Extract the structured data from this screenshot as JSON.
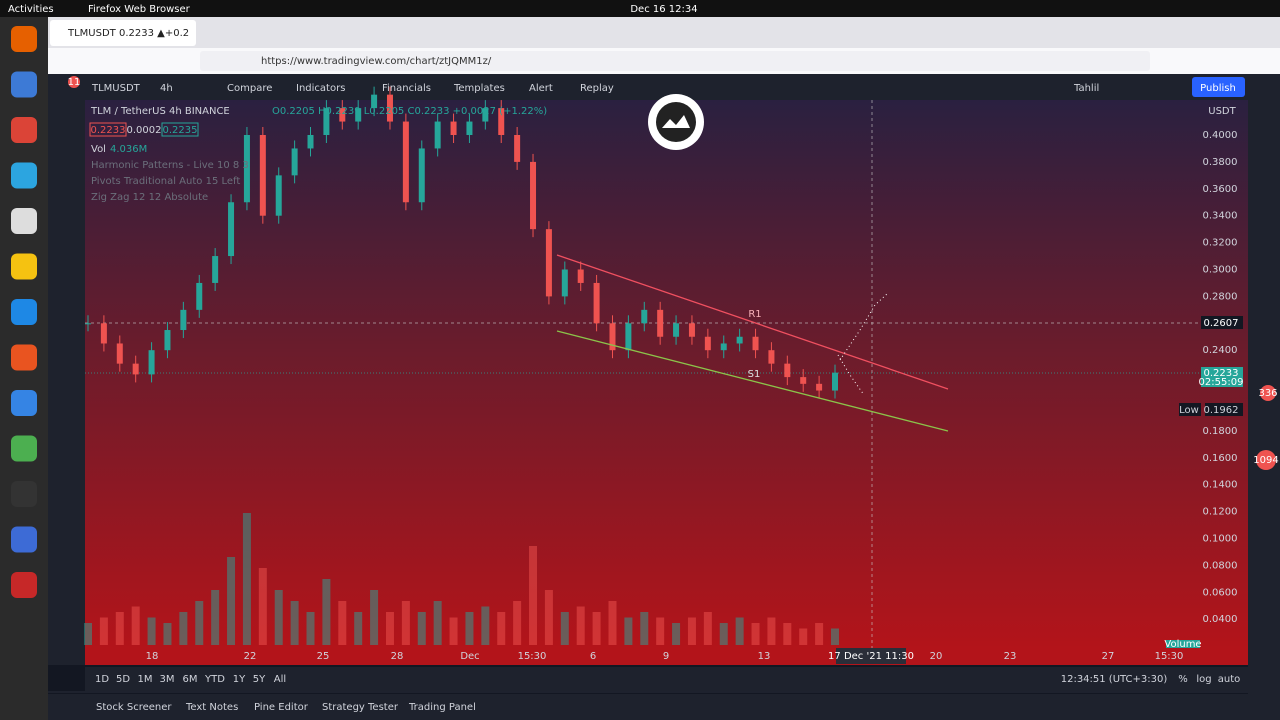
{
  "system_bar": {
    "activities": "Activities",
    "app": "Firefox Web Browser",
    "clock": "Dec 16  12:34"
  },
  "browser": {
    "tab_title": "TLMUSDT 0.2233 ▲+0.2",
    "url": "https://www.tradingview.com/chart/ztJQMM1z/",
    "tab_badge": "11"
  },
  "toolbar": {
    "symbol": "TLMUSDT",
    "interval": "4h",
    "buttons": [
      "Compare",
      "Indicators",
      "Financials",
      "Templates",
      "Alert",
      "Replay"
    ],
    "layout": "Tahlil",
    "publish": "Publish"
  },
  "legend": {
    "title": "TLM / TetherUS  4h  BINANCE",
    "ohlc": "O0.2205 H0.2239 L0.2205 C0.2233 +0.0027 (+1.22%)",
    "bid": "0.2233",
    "spread": "0.0002",
    "ask": "0.2235",
    "vol_label": "Vol",
    "vol": "4.036M",
    "indicators": [
      "Harmonic Patterns - Live 10 8 3",
      "Pivots Traditional Auto 15 Left",
      "Zig Zag 12 12 Absolute"
    ]
  },
  "drawings": {
    "resistance": "R1",
    "support": "S1"
  },
  "price_axis": {
    "currency": "USDT",
    "ticks": [
      "0.4000",
      "0.3800",
      "0.3600",
      "0.3400",
      "0.3200",
      "0.3000",
      "0.2800",
      "0.2400",
      "0.1800",
      "0.1600",
      "0.1400",
      "0.1200",
      "0.1000",
      "0.0800",
      "0.0600",
      "0.0400"
    ],
    "crosshair": "0.2607",
    "last_price": "0.2233",
    "countdown": "02:55:09",
    "low_label": "Low",
    "low": "0.1962"
  },
  "time_axis": {
    "labels": [
      "18",
      "22",
      "25",
      "28",
      "Dec",
      "15:30",
      "6",
      "9",
      "13",
      "20",
      "23",
      "27",
      "15:30"
    ],
    "crosshair": "17 Dec '21  11:30"
  },
  "series": {
    "closes": [
      0.26,
      0.245,
      0.23,
      0.222,
      0.24,
      0.255,
      0.27,
      0.29,
      0.31,
      0.35,
      0.4,
      0.34,
      0.37,
      0.39,
      0.4,
      0.42,
      0.41,
      0.42,
      0.43,
      0.41,
      0.35,
      0.39,
      0.41,
      0.4,
      0.41,
      0.42,
      0.4,
      0.38,
      0.33,
      0.28,
      0.3,
      0.29,
      0.26,
      0.24,
      0.26,
      0.27,
      0.25,
      0.26,
      0.25,
      0.24,
      0.245,
      0.25,
      0.24,
      0.23,
      0.22,
      0.215,
      0.21,
      0.2233
    ],
    "volumes": [
      2,
      2.5,
      3,
      3.5,
      2.5,
      2,
      3,
      4,
      5,
      8,
      12,
      7,
      5,
      4,
      3,
      6,
      4,
      3,
      5,
      3,
      4,
      3,
      4,
      2.5,
      3,
      3.5,
      3,
      4,
      9,
      5,
      3,
      3.5,
      3,
      4,
      2.5,
      3,
      2.5,
      2,
      2.5,
      3,
      2,
      2.5,
      2,
      2.5,
      2,
      1.5,
      2,
      1.5
    ]
  },
  "volume_label": "Volume",
  "range_bar": {
    "ranges": [
      "1D",
      "5D",
      "1M",
      "3M",
      "6M",
      "YTD",
      "1Y",
      "5Y",
      "All"
    ],
    "clock": "12:34:51 (UTC+3:30)",
    "options": [
      "%",
      "log",
      "auto"
    ]
  },
  "footer": {
    "tabs": [
      "Stock Screener",
      "Text Notes",
      "Pine Editor",
      "Strategy Tester",
      "Trading Panel"
    ]
  },
  "badges": [
    "336",
    "1094"
  ]
}
